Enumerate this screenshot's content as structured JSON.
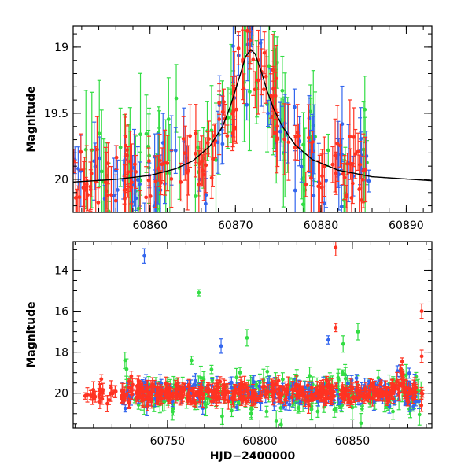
{
  "chart_data": [
    {
      "type": "scatter",
      "title": "",
      "xlabel": "",
      "ylabel": "Magnitude",
      "xlim": [
        60851,
        60893
      ],
      "ylim": [
        20.25,
        18.84
      ],
      "y_inverted": true,
      "x_ticks": [
        60860,
        60870,
        60880,
        60890
      ],
      "y_ticks": [
        19,
        19.5,
        20
      ],
      "x_tick_labels": [
        "60860",
        "60870",
        "60880",
        "60890"
      ],
      "y_tick_labels": [
        "19",
        "19.5",
        "20"
      ],
      "grid": false,
      "legend": "none",
      "error_bars": true,
      "series": [
        {
          "color": "#3366ee"
        },
        {
          "color": "#33dd44"
        },
        {
          "color": "#ff3322"
        }
      ],
      "model_curve": {
        "color": "#000000",
        "x": [
          60851,
          60856,
          60860,
          60863,
          60865,
          60867,
          60868.5,
          60869.5,
          60870.5,
          60871.2,
          60871.8,
          60872.3,
          60873,
          60873.7,
          60874.5,
          60875.5,
          60877,
          60879,
          60882,
          60886,
          60893
        ],
        "y": [
          20.02,
          20.0,
          19.97,
          19.92,
          19.86,
          19.75,
          19.6,
          19.43,
          19.22,
          19.07,
          19.02,
          19.05,
          19.18,
          19.33,
          19.47,
          19.6,
          19.74,
          19.85,
          19.93,
          19.98,
          20.01
        ]
      }
    },
    {
      "type": "scatter",
      "title": "",
      "xlabel": "HJD−2400000",
      "ylabel": "Magnitude",
      "xlim": [
        60699,
        60893
      ],
      "ylim": [
        21.7,
        12.6
      ],
      "y_inverted": true,
      "x_ticks": [
        60750,
        60800,
        60850
      ],
      "y_ticks": [
        14,
        16,
        18,
        20
      ],
      "x_tick_labels": [
        "60750",
        "60800",
        "60850"
      ],
      "y_tick_labels": [
        "14",
        "16",
        "18",
        "20"
      ],
      "grid": false,
      "legend": "none",
      "error_bars": true,
      "series": [
        {
          "color": "#3366ee"
        },
        {
          "color": "#33dd44"
        },
        {
          "color": "#ff3322"
        }
      ],
      "outliers": [
        {
          "series": 0,
          "x": 60737.5,
          "y": 13.3,
          "err": 0.35
        },
        {
          "series": 1,
          "x": 60767,
          "y": 15.1,
          "err": 0.15
        },
        {
          "series": 2,
          "x": 60841,
          "y": 12.9,
          "err": 0.4
        },
        {
          "series": 2,
          "x": 60887.5,
          "y": 16.0,
          "err": 0.35
        },
        {
          "series": 0,
          "x": 60779,
          "y": 17.7,
          "err": 0.35
        },
        {
          "series": 1,
          "x": 60793,
          "y": 17.3,
          "err": 0.4
        },
        {
          "series": 1,
          "x": 60727,
          "y": 18.4,
          "err": 0.4
        },
        {
          "series": 1,
          "x": 60763,
          "y": 18.4,
          "err": 0.2
        },
        {
          "series": 0,
          "x": 60837,
          "y": 17.4,
          "err": 0.2
        },
        {
          "series": 2,
          "x": 60841,
          "y": 16.8,
          "err": 0.2
        },
        {
          "series": 1,
          "x": 60845,
          "y": 17.6,
          "err": 0.4
        },
        {
          "series": 1,
          "x": 60853,
          "y": 17.0,
          "err": 0.4
        },
        {
          "series": 2,
          "x": 60887.5,
          "y": 18.2,
          "err": 0.3
        }
      ]
    }
  ]
}
